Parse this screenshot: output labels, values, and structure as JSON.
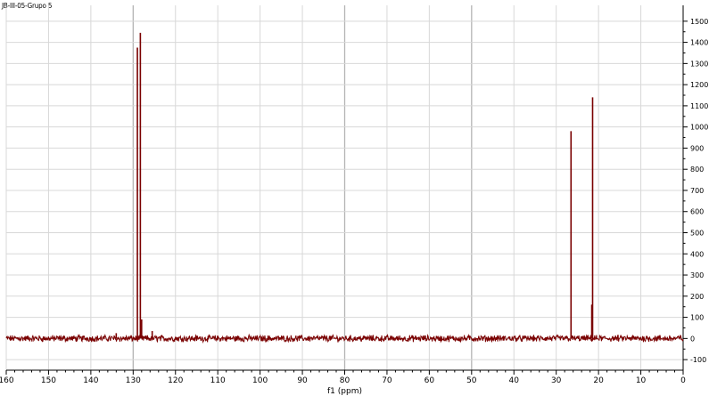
{
  "header": {
    "sample_label": "JB-III-05-Grupo 5"
  },
  "chart_data": {
    "type": "line",
    "title": "",
    "xlabel": "f1 (ppm)",
    "ylabel": "",
    "xlim": [
      160,
      0
    ],
    "ylim": [
      -150,
      1575
    ],
    "x_reversed": true,
    "grid": true,
    "legend": "none",
    "x_ticks": [
      160,
      150,
      140,
      130,
      120,
      110,
      100,
      90,
      80,
      70,
      60,
      50,
      40,
      30,
      20,
      10,
      0
    ],
    "y_ticks": [
      -100,
      0,
      100,
      200,
      300,
      400,
      500,
      600,
      700,
      800,
      900,
      1000,
      1100,
      1200,
      1300,
      1400,
      1500
    ],
    "series": [
      {
        "color": "#7a0000",
        "baseline": 0,
        "peaks": [
          {
            "x": 129.0,
            "y": 1375
          },
          {
            "x": 128.3,
            "y": 1445
          },
          {
            "x": 128.0,
            "y": 90
          },
          {
            "x": 125.5,
            "y": 35
          },
          {
            "x": 134.0,
            "y": 25
          },
          {
            "x": 26.5,
            "y": 980
          },
          {
            "x": 21.4,
            "y": 1140
          },
          {
            "x": 21.6,
            "y": 160
          }
        ]
      }
    ]
  }
}
